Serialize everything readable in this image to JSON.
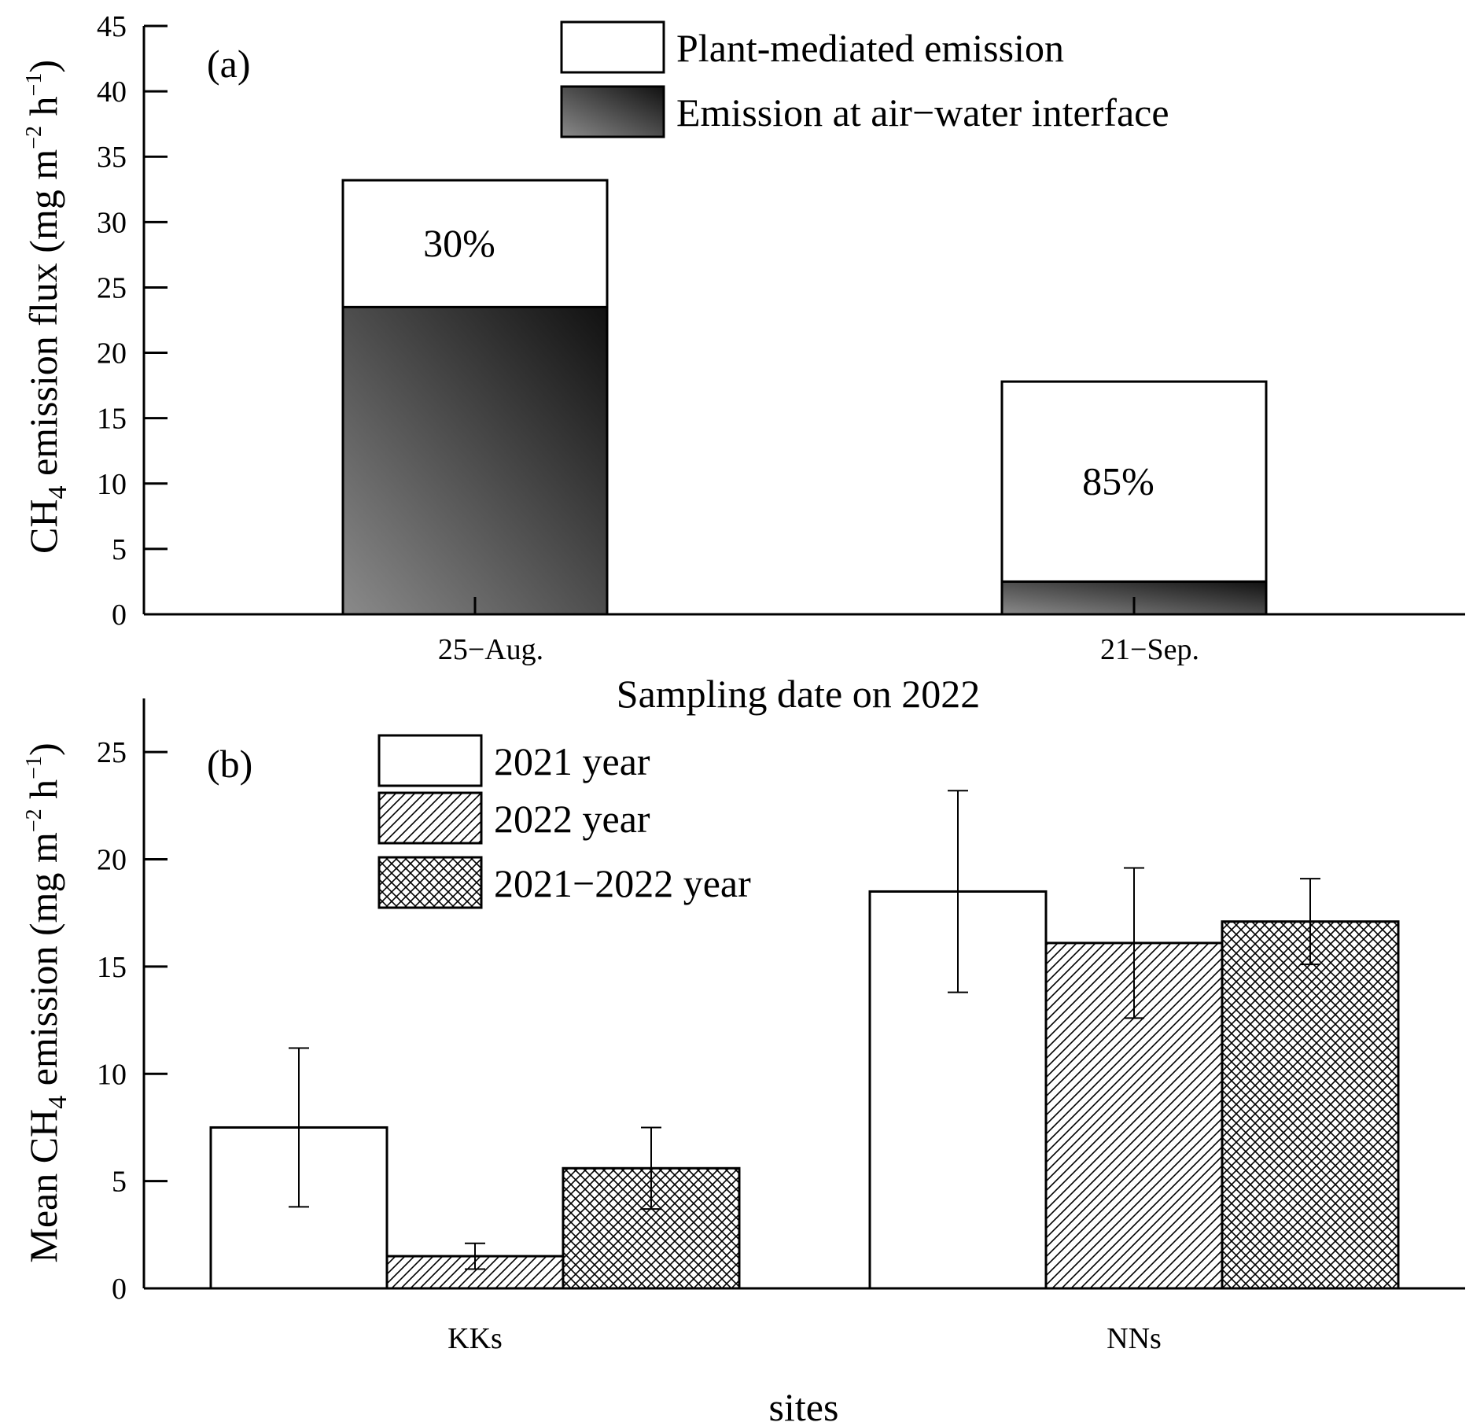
{
  "colors": {
    "ink": "#000000",
    "white_fill": "#ffffff",
    "gradient_light": "#8a8a8a",
    "gradient_dark": "#111111"
  },
  "chart_data": [
    {
      "panel": "(a)",
      "type": "bar",
      "stacked": true,
      "categories": [
        "25−Aug.",
        "21−Sep."
      ],
      "series": [
        {
          "name": "Emission at air−water interface",
          "values": [
            23.5,
            2.5
          ],
          "pattern": "gradient"
        },
        {
          "name": "Plant-mediated emission",
          "values": [
            9.7,
            15.3
          ],
          "pattern": "white"
        }
      ],
      "totals": [
        33.2,
        17.8
      ],
      "annotations": [
        "30%",
        "85%"
      ],
      "xlabel": "Sampling date on 2022",
      "ylabel": {
        "prefix": "CH",
        "sub": "4",
        "mid": " emission flux (mg m",
        "sup1": "−2",
        "mid2": " h",
        "sup2": "−1",
        "suffix": ")"
      },
      "ylim": [
        0,
        45
      ],
      "yticks": [
        0,
        5,
        10,
        15,
        20,
        25,
        30,
        35,
        40,
        45
      ],
      "legend_position": "top-right"
    },
    {
      "panel": "(b)",
      "type": "bar",
      "stacked": false,
      "categories": [
        "KKs",
        "NNs"
      ],
      "series": [
        {
          "name": "2021 year",
          "values": [
            7.5,
            18.5
          ],
          "errors": [
            3.7,
            4.7
          ],
          "pattern": "white"
        },
        {
          "name": "2022 year",
          "values": [
            1.5,
            16.1
          ],
          "errors": [
            0.6,
            3.5
          ],
          "pattern": "diagonal"
        },
        {
          "name": "2021−2022 year",
          "values": [
            5.6,
            17.1
          ],
          "errors": [
            1.9,
            2.0
          ],
          "pattern": "crosshatch"
        }
      ],
      "xlabel": "sites",
      "ylabel": {
        "prefix": "Mean CH",
        "sub": "4",
        "mid": " emission (mg m",
        "sup1": "−2",
        "mid2": " h",
        "sup2": "−1",
        "suffix": ")"
      },
      "ylim": [
        0,
        27.5
      ],
      "yticks": [
        0,
        5,
        10,
        15,
        20,
        25
      ],
      "legend_position": "top-left"
    }
  ]
}
